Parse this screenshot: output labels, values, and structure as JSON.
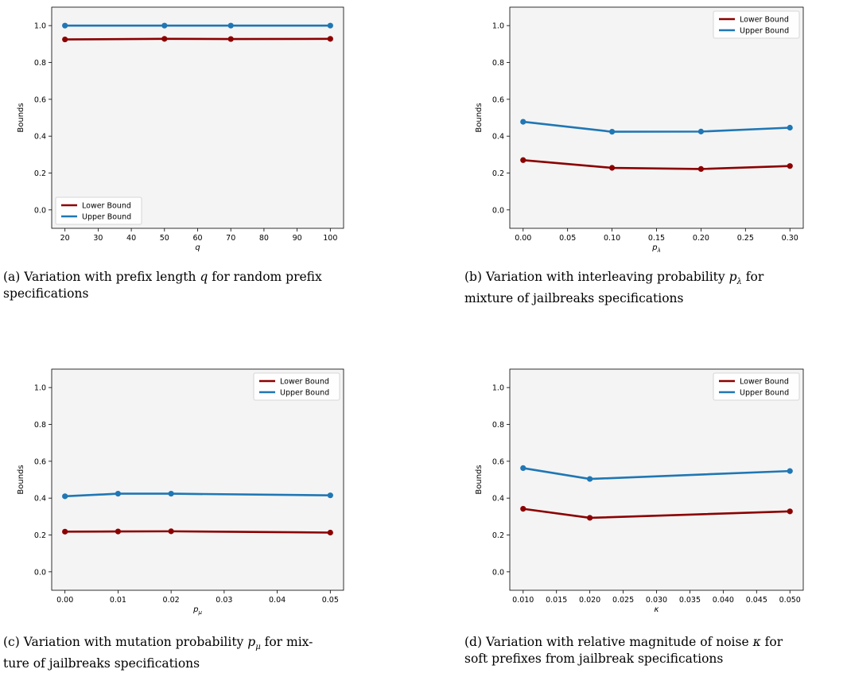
{
  "chart_data": [
    {
      "id": "a",
      "type": "line",
      "x": [
        20,
        50,
        70,
        100
      ],
      "xticks": [
        20,
        30,
        40,
        50,
        60,
        70,
        80,
        90,
        100
      ],
      "xlim": [
        16,
        104
      ],
      "ylim": [
        -0.1,
        1.1
      ],
      "yticks": [
        0.0,
        0.2,
        0.4,
        0.6,
        0.8,
        1.0
      ],
      "xlabel": "q",
      "ylabel": "Bounds",
      "legend": "lower-left",
      "grid": false,
      "series": [
        {
          "name": "Lower Bound",
          "color": "#8b0000",
          "values": [
            0.925,
            0.928,
            0.927,
            0.928
          ]
        },
        {
          "name": "Upper Bound",
          "color": "#1f77b4",
          "values": [
            1.0,
            1.0,
            1.0,
            1.0
          ]
        }
      ],
      "caption": {
        "label": "(a)",
        "pre": "Variation with prefix length ",
        "sym": "q",
        "sub": "",
        "line1_end": " for random prefix",
        "line2": "specifications"
      }
    },
    {
      "id": "b",
      "type": "line",
      "x": [
        0.0,
        0.1,
        0.2,
        0.3
      ],
      "xticks": [
        0.0,
        0.05,
        0.1,
        0.15,
        0.2,
        0.25,
        0.3
      ],
      "xtick_labels": [
        "0.00",
        "0.05",
        "0.10",
        "0.15",
        "0.20",
        "0.25",
        "0.30"
      ],
      "xlim": [
        -0.015,
        0.315
      ],
      "ylim": [
        -0.1,
        1.1
      ],
      "yticks": [
        0.0,
        0.2,
        0.4,
        0.6,
        0.8,
        1.0
      ],
      "xlabel": "pλ",
      "ylabel": "Bounds",
      "legend": "top-right",
      "grid": false,
      "series": [
        {
          "name": "Lower Bound",
          "color": "#8b0000",
          "values": [
            0.27,
            0.228,
            0.222,
            0.238
          ]
        },
        {
          "name": "Upper Bound",
          "color": "#1f77b4",
          "values": [
            0.478,
            0.424,
            0.425,
            0.446
          ]
        }
      ],
      "caption": {
        "label": "(b)",
        "pre": "Variation with interleaving probability ",
        "sym": "p",
        "sub": "λ",
        "line1_end": " for",
        "line2": "mixture of jailbreaks specifications"
      }
    },
    {
      "id": "c",
      "type": "line",
      "x": [
        0.0,
        0.01,
        0.02,
        0.05
      ],
      "xticks": [
        0.0,
        0.01,
        0.02,
        0.03,
        0.04,
        0.05
      ],
      "xtick_labels": [
        "0.00",
        "0.01",
        "0.02",
        "0.03",
        "0.04",
        "0.05"
      ],
      "xlim": [
        -0.0025,
        0.0525
      ],
      "ylim": [
        -0.1,
        1.1
      ],
      "yticks": [
        0.0,
        0.2,
        0.4,
        0.6,
        0.8,
        1.0
      ],
      "xlabel": "pμ",
      "ylabel": "Bounds",
      "legend": "top-right",
      "grid": false,
      "series": [
        {
          "name": "Lower Bound",
          "color": "#8b0000",
          "values": [
            0.218,
            0.219,
            0.22,
            0.213
          ]
        },
        {
          "name": "Upper Bound",
          "color": "#1f77b4",
          "values": [
            0.41,
            0.424,
            0.424,
            0.415
          ]
        }
      ],
      "caption": {
        "label": "(c)",
        "pre": "Variation with mutation probability ",
        "sym": "p",
        "sub": "μ",
        "line1_end": " for mix-",
        "line2": "ture of jailbreaks specifications"
      }
    },
    {
      "id": "d",
      "type": "line",
      "x": [
        0.01,
        0.02,
        0.05
      ],
      "xticks": [
        0.01,
        0.015,
        0.02,
        0.025,
        0.03,
        0.035,
        0.04,
        0.045,
        0.05
      ],
      "xtick_labels": [
        "0.010",
        "0.015",
        "0.020",
        "0.025",
        "0.030",
        "0.035",
        "0.040",
        "0.045",
        "0.050"
      ],
      "xlim": [
        0.008,
        0.052
      ],
      "ylim": [
        -0.1,
        1.1
      ],
      "yticks": [
        0.0,
        0.2,
        0.4,
        0.6,
        0.8,
        1.0
      ],
      "xlabel": "κ",
      "ylabel": "Bounds",
      "legend": "top-right",
      "grid": false,
      "series": [
        {
          "name": "Lower Bound",
          "color": "#8b0000",
          "values": [
            0.342,
            0.293,
            0.328
          ]
        },
        {
          "name": "Upper Bound",
          "color": "#1f77b4",
          "values": [
            0.563,
            0.504,
            0.547
          ]
        }
      ],
      "caption": {
        "label": "(d)",
        "pre": "Variation with relative magnitude of noise ",
        "sym": "κ",
        "sub": "",
        "line1_end": " for",
        "line2": "soft prefixes from jailbreak specifications"
      }
    }
  ]
}
